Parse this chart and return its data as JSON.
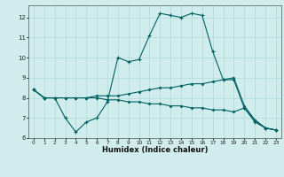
{
  "line1_x": [
    0,
    1,
    2,
    3,
    4,
    5,
    6,
    7,
    8,
    9,
    10,
    11,
    12,
    13,
    14,
    15,
    16,
    17,
    18,
    19,
    20,
    21,
    22,
    23
  ],
  "line1_y": [
    8.4,
    8.0,
    8.0,
    7.0,
    6.3,
    6.8,
    7.0,
    7.8,
    10.0,
    9.8,
    9.9,
    11.1,
    12.2,
    12.1,
    12.0,
    12.2,
    12.1,
    10.3,
    8.9,
    8.9,
    7.5,
    6.8,
    6.5,
    6.4
  ],
  "line2_x": [
    0,
    1,
    2,
    3,
    4,
    5,
    6,
    7,
    8,
    9,
    10,
    11,
    12,
    13,
    14,
    15,
    16,
    17,
    18,
    19,
    20,
    21,
    22,
    23
  ],
  "line2_y": [
    8.4,
    8.0,
    8.0,
    8.0,
    8.0,
    8.0,
    8.1,
    8.1,
    8.1,
    8.2,
    8.3,
    8.4,
    8.5,
    8.5,
    8.6,
    8.7,
    8.7,
    8.8,
    8.9,
    9.0,
    7.6,
    6.9,
    6.5,
    6.4
  ],
  "line3_x": [
    0,
    1,
    2,
    3,
    4,
    5,
    6,
    7,
    8,
    9,
    10,
    11,
    12,
    13,
    14,
    15,
    16,
    17,
    18,
    19,
    20,
    21,
    22,
    23
  ],
  "line3_y": [
    8.4,
    8.0,
    8.0,
    8.0,
    8.0,
    8.0,
    8.0,
    7.9,
    7.9,
    7.8,
    7.8,
    7.7,
    7.7,
    7.6,
    7.6,
    7.5,
    7.5,
    7.4,
    7.4,
    7.3,
    7.5,
    6.9,
    6.5,
    6.4
  ],
  "line_color": "#006060",
  "bg_color": "#d0ecec",
  "grid_color": "#a8d4d4",
  "xlabel": "Humidex (Indice chaleur)",
  "xlim": [
    -0.5,
    23.5
  ],
  "ylim": [
    6.0,
    12.6
  ],
  "yticks": [
    6,
    7,
    8,
    9,
    10,
    11,
    12
  ],
  "xticks": [
    0,
    1,
    2,
    3,
    4,
    5,
    6,
    7,
    8,
    9,
    10,
    11,
    12,
    13,
    14,
    15,
    16,
    17,
    18,
    19,
    20,
    21,
    22,
    23
  ]
}
